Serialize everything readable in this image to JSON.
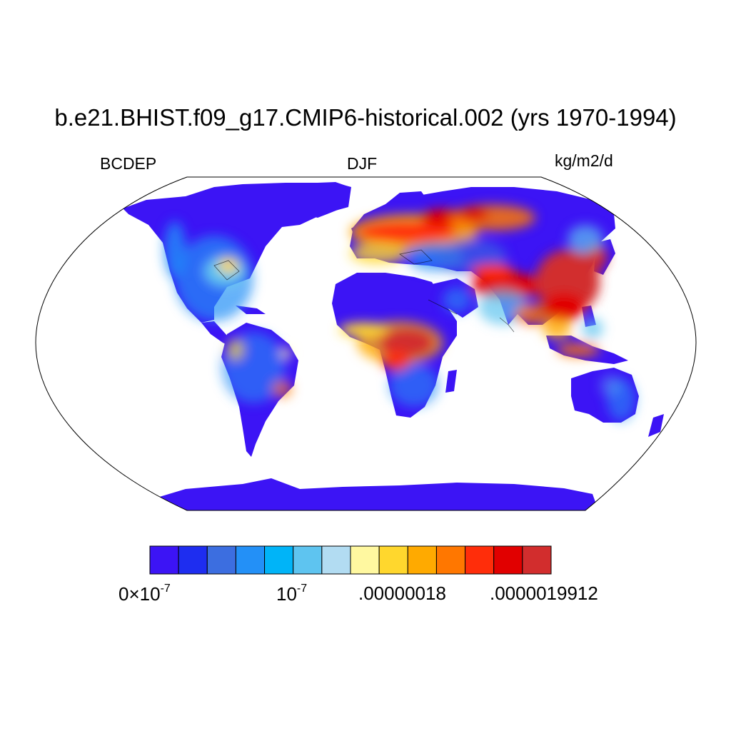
{
  "title": "b.e21.BHIST.f09_g17.CMIP6-historical.002 (yrs 1970-1994)",
  "left_label": "BCDEP",
  "center_label": "DJF",
  "right_label": "kg/m2/d",
  "colorbar": {
    "colors": [
      "#3c14f5",
      "#1e2df0",
      "#3c6ee0",
      "#2390f7",
      "#00b4f8",
      "#5ec4f0",
      "#b2dcf2",
      "#fff8a0",
      "#ffd72d",
      "#ffaa00",
      "#ff7700",
      "#ff2d0a",
      "#e10000",
      "#d22d2d"
    ],
    "labels": [
      {
        "base": "0×10",
        "exp": "-7"
      },
      {
        "base": "10",
        "exp": "-7"
      },
      {
        "base": ".00000018",
        "exp": ""
      },
      {
        "base": ".0000019912",
        "exp": ""
      }
    ]
  },
  "map": {
    "projection": "Robinson",
    "land_fill": "#3c14f5",
    "ocean_fill": "#ffffff"
  }
}
